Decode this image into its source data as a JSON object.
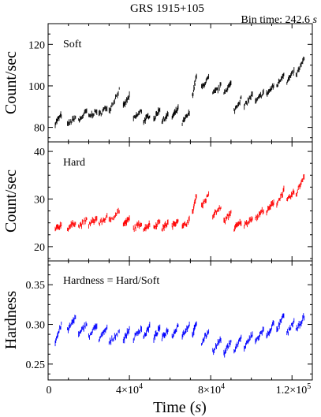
{
  "header": {
    "title": "GRS 1915+105",
    "bin_time_label": "Bin time: 242.6",
    "bin_time_unit": "s"
  },
  "x_axis": {
    "label": "Time",
    "unit": "s",
    "range": [
      0,
      130000
    ],
    "ticks": [
      {
        "value": 0,
        "label": "0"
      },
      {
        "value": 40000,
        "mantissa": "4×10",
        "exp": "4"
      },
      {
        "value": 80000,
        "mantissa": "8×10",
        "exp": "4"
      },
      {
        "value": 120000,
        "mantissa": "1.2×10",
        "exp": "5"
      }
    ]
  },
  "chart_data": [
    {
      "type": "line",
      "panel_label": "Soft",
      "ylabel": "Count/sec",
      "ylim": [
        73,
        130
      ],
      "yticks": [
        80,
        100,
        120
      ],
      "color": "#000000",
      "segments": [
        {
          "x": [
            3500,
            6500
          ],
          "y": [
            82,
            86
          ]
        },
        {
          "x": [
            9500,
            13500
          ],
          "y": [
            81,
            85
          ]
        },
        {
          "x": [
            15000,
            19000
          ],
          "y": [
            83,
            88
          ]
        },
        {
          "x": [
            20000,
            24000
          ],
          "y": [
            85,
            88
          ]
        },
        {
          "x": [
            25000,
            29000
          ],
          "y": [
            86,
            90
          ]
        },
        {
          "x": [
            30000,
            35000
          ],
          "y": [
            88,
            98
          ]
        },
        {
          "x": [
            37000,
            40000
          ],
          "y": [
            90,
            95
          ]
        },
        {
          "x": [
            42000,
            46000
          ],
          "y": [
            84,
            88
          ]
        },
        {
          "x": [
            47000,
            50000
          ],
          "y": [
            83,
            86
          ]
        },
        {
          "x": [
            52000,
            55000
          ],
          "y": [
            84,
            89
          ]
        },
        {
          "x": [
            56000,
            59000
          ],
          "y": [
            83,
            86
          ]
        },
        {
          "x": [
            61000,
            64000
          ],
          "y": [
            85,
            89
          ]
        },
        {
          "x": [
            66000,
            69500
          ],
          "y": [
            82,
            87
          ]
        },
        {
          "x": [
            71000,
            73000
          ],
          "y": [
            95,
            105
          ]
        },
        {
          "x": [
            75500,
            79000
          ],
          "y": [
            99,
            104
          ]
        },
        {
          "x": [
            81000,
            85000
          ],
          "y": [
            96,
            100
          ]
        },
        {
          "x": [
            86500,
            90000
          ],
          "y": [
            97,
            101
          ]
        },
        {
          "x": [
            91500,
            95000
          ],
          "y": [
            88,
            94
          ]
        },
        {
          "x": [
            96500,
            100500
          ],
          "y": [
            90,
            96
          ]
        },
        {
          "x": [
            102000,
            106000
          ],
          "y": [
            92,
            97
          ]
        },
        {
          "x": [
            107500,
            111000
          ],
          "y": [
            96,
            100
          ]
        },
        {
          "x": [
            112500,
            116000
          ],
          "y": [
            100,
            106
          ]
        },
        {
          "x": [
            117500,
            121000
          ],
          "y": [
            102,
            107
          ]
        },
        {
          "x": [
            122000,
            126000
          ],
          "y": [
            105,
            113
          ]
        }
      ]
    },
    {
      "type": "line",
      "panel_label": "Hard",
      "ylabel": "Count/sec",
      "ylim": [
        17,
        42
      ],
      "yticks": [
        20,
        30,
        40
      ],
      "color": "#ff0000",
      "segments": [
        {
          "x": [
            3500,
            6500
          ],
          "y": [
            23.6,
            24.6
          ]
        },
        {
          "x": [
            9500,
            13500
          ],
          "y": [
            23.8,
            25.2
          ]
        },
        {
          "x": [
            15000,
            19000
          ],
          "y": [
            24.2,
            25.6
          ]
        },
        {
          "x": [
            20000,
            24000
          ],
          "y": [
            24.6,
            26.0
          ]
        },
        {
          "x": [
            25000,
            29000
          ],
          "y": [
            24.8,
            26.2
          ]
        },
        {
          "x": [
            30000,
            35000
          ],
          "y": [
            25.4,
            27.6
          ]
        },
        {
          "x": [
            37000,
            40000
          ],
          "y": [
            24.6,
            25.8
          ]
        },
        {
          "x": [
            42000,
            46000
          ],
          "y": [
            23.8,
            25.0
          ]
        },
        {
          "x": [
            47000,
            50000
          ],
          "y": [
            23.6,
            24.8
          ]
        },
        {
          "x": [
            52000,
            55000
          ],
          "y": [
            24.0,
            25.4
          ]
        },
        {
          "x": [
            56000,
            59000
          ],
          "y": [
            23.8,
            25.0
          ]
        },
        {
          "x": [
            61000,
            64000
          ],
          "y": [
            24.2,
            25.8
          ]
        },
        {
          "x": [
            66000,
            69500
          ],
          "y": [
            24.0,
            25.6
          ]
        },
        {
          "x": [
            71000,
            73000
          ],
          "y": [
            27.0,
            31.0
          ]
        },
        {
          "x": [
            75500,
            79000
          ],
          "y": [
            28.6,
            30.8
          ]
        },
        {
          "x": [
            81000,
            85000
          ],
          "y": [
            26.4,
            28.4
          ]
        },
        {
          "x": [
            86500,
            90000
          ],
          "y": [
            25.2,
            27.2
          ]
        },
        {
          "x": [
            91500,
            95000
          ],
          "y": [
            23.8,
            25.2
          ]
        },
        {
          "x": [
            96500,
            100500
          ],
          "y": [
            24.4,
            26.2
          ]
        },
        {
          "x": [
            102000,
            106000
          ],
          "y": [
            25.8,
            27.8
          ]
        },
        {
          "x": [
            107500,
            111000
          ],
          "y": [
            27.2,
            29.4
          ]
        },
        {
          "x": [
            112500,
            116000
          ],
          "y": [
            29.0,
            31.8
          ]
        },
        {
          "x": [
            117500,
            121000
          ],
          "y": [
            29.6,
            31.4
          ]
        },
        {
          "x": [
            122000,
            126000
          ],
          "y": [
            31.0,
            35.0
          ]
        }
      ]
    },
    {
      "type": "line",
      "panel_label": "Hardness = Hard/Soft",
      "ylabel": "Hardness",
      "ylim": [
        0.23,
        0.38
      ],
      "yticks": [
        0.25,
        0.3,
        0.35
      ],
      "color": "#0000ff",
      "segments": [
        {
          "x": [
            3500,
            6500
          ],
          "y": [
            0.278,
            0.3
          ]
        },
        {
          "x": [
            9500,
            13500
          ],
          "y": [
            0.292,
            0.31
          ]
        },
        {
          "x": [
            15000,
            19000
          ],
          "y": [
            0.286,
            0.302
          ]
        },
        {
          "x": [
            20000,
            24000
          ],
          "y": [
            0.284,
            0.3
          ]
        },
        {
          "x": [
            25000,
            29000
          ],
          "y": [
            0.28,
            0.296
          ]
        },
        {
          "x": [
            30000,
            35000
          ],
          "y": [
            0.276,
            0.292
          ]
        },
        {
          "x": [
            37000,
            40000
          ],
          "y": [
            0.28,
            0.294
          ]
        },
        {
          "x": [
            42000,
            46000
          ],
          "y": [
            0.282,
            0.296
          ]
        },
        {
          "x": [
            47000,
            50000
          ],
          "y": [
            0.284,
            0.298
          ]
        },
        {
          "x": [
            52000,
            55000
          ],
          "y": [
            0.282,
            0.296
          ]
        },
        {
          "x": [
            56000,
            59000
          ],
          "y": [
            0.282,
            0.294
          ]
        },
        {
          "x": [
            61000,
            64000
          ],
          "y": [
            0.284,
            0.3
          ]
        },
        {
          "x": [
            66000,
            69500
          ],
          "y": [
            0.286,
            0.3
          ]
        },
        {
          "x": [
            71000,
            73000
          ],
          "y": [
            0.286,
            0.302
          ]
        },
        {
          "x": [
            75500,
            79000
          ],
          "y": [
            0.276,
            0.292
          ]
        },
        {
          "x": [
            81000,
            85000
          ],
          "y": [
            0.266,
            0.282
          ]
        },
        {
          "x": [
            86500,
            90000
          ],
          "y": [
            0.262,
            0.28
          ]
        },
        {
          "x": [
            91500,
            95000
          ],
          "y": [
            0.266,
            0.284
          ]
        },
        {
          "x": [
            96500,
            100500
          ],
          "y": [
            0.27,
            0.288
          ]
        },
        {
          "x": [
            102000,
            106000
          ],
          "y": [
            0.278,
            0.294
          ]
        },
        {
          "x": [
            107500,
            111000
          ],
          "y": [
            0.284,
            0.302
          ]
        },
        {
          "x": [
            112500,
            116000
          ],
          "y": [
            0.292,
            0.312
          ]
        },
        {
          "x": [
            117500,
            121000
          ],
          "y": [
            0.288,
            0.304
          ]
        },
        {
          "x": [
            122000,
            126000
          ],
          "y": [
            0.292,
            0.31
          ]
        }
      ]
    }
  ]
}
